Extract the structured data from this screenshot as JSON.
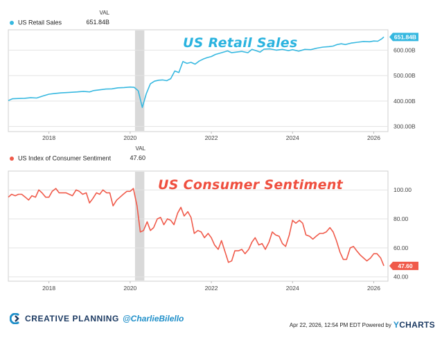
{
  "chart_data": [
    {
      "type": "line",
      "title": "US Retail Sales",
      "series": [
        {
          "name": "US Retail Sales",
          "color": "#36b8e0"
        }
      ],
      "legend": {
        "header": "VAL",
        "value": "651.84B"
      },
      "end_label": "651.84B",
      "yticks": [
        "300.00B",
        "400.00B",
        "500.00B",
        "600.00B"
      ],
      "ylim": [
        280,
        680
      ],
      "xticks": [
        "2018",
        "2020",
        "2022",
        "2024",
        "2026"
      ],
      "xlim": [
        2017.0,
        2026.35
      ],
      "recession": [
        2020.12,
        2020.35
      ],
      "points": [
        [
          2017.0,
          402
        ],
        [
          2017.1,
          409
        ],
        [
          2017.25,
          410
        ],
        [
          2017.4,
          411
        ],
        [
          2017.55,
          413
        ],
        [
          2017.7,
          412
        ],
        [
          2017.85,
          420
        ],
        [
          2018.0,
          427
        ],
        [
          2018.15,
          430
        ],
        [
          2018.3,
          432
        ],
        [
          2018.5,
          434
        ],
        [
          2018.7,
          436
        ],
        [
          2018.85,
          438
        ],
        [
          2019.0,
          436
        ],
        [
          2019.1,
          441
        ],
        [
          2019.25,
          444
        ],
        [
          2019.4,
          447
        ],
        [
          2019.55,
          448
        ],
        [
          2019.7,
          452
        ],
        [
          2019.85,
          453
        ],
        [
          2020.0,
          455
        ],
        [
          2020.1,
          454
        ],
        [
          2020.2,
          440
        ],
        [
          2020.3,
          375
        ],
        [
          2020.4,
          430
        ],
        [
          2020.5,
          468
        ],
        [
          2020.6,
          478
        ],
        [
          2020.7,
          482
        ],
        [
          2020.8,
          483
        ],
        [
          2020.9,
          480
        ],
        [
          2021.0,
          488
        ],
        [
          2021.1,
          518
        ],
        [
          2021.2,
          512
        ],
        [
          2021.3,
          555
        ],
        [
          2021.4,
          548
        ],
        [
          2021.5,
          552
        ],
        [
          2021.6,
          545
        ],
        [
          2021.7,
          557
        ],
        [
          2021.8,
          565
        ],
        [
          2021.9,
          571
        ],
        [
          2022.0,
          575
        ],
        [
          2022.1,
          583
        ],
        [
          2022.25,
          590
        ],
        [
          2022.4,
          597
        ],
        [
          2022.5,
          590
        ],
        [
          2022.6,
          592
        ],
        [
          2022.75,
          595
        ],
        [
          2022.9,
          590
        ],
        [
          2023.0,
          603
        ],
        [
          2023.1,
          598
        ],
        [
          2023.2,
          592
        ],
        [
          2023.3,
          604
        ],
        [
          2023.45,
          605
        ],
        [
          2023.6,
          600
        ],
        [
          2023.75,
          603
        ],
        [
          2023.9,
          598
        ],
        [
          2024.0,
          602
        ],
        [
          2024.15,
          596
        ],
        [
          2024.3,
          603
        ],
        [
          2024.45,
          602
        ],
        [
          2024.6,
          608
        ],
        [
          2024.75,
          612
        ],
        [
          2024.9,
          614
        ],
        [
          2025.0,
          616
        ],
        [
          2025.1,
          622
        ],
        [
          2025.2,
          625
        ],
        [
          2025.3,
          622
        ],
        [
          2025.45,
          628
        ],
        [
          2025.6,
          631
        ],
        [
          2025.75,
          634
        ],
        [
          2025.9,
          633
        ],
        [
          2026.0,
          636
        ],
        [
          2026.1,
          635
        ],
        [
          2026.2,
          645
        ],
        [
          2026.25,
          651.84
        ]
      ]
    },
    {
      "type": "line",
      "title": "US Consumer Sentiment",
      "series": [
        {
          "name": "US Index of Consumer Sentiment",
          "color": "#f05a4a"
        }
      ],
      "legend": {
        "header": "VAL",
        "value": "47.60"
      },
      "end_label": "47.60",
      "yticks": [
        "40.00",
        "60.00",
        "80.00",
        "100.00"
      ],
      "ylim": [
        37,
        113
      ],
      "xticks": [
        "2018",
        "2020",
        "2022",
        "2024",
        "2026"
      ],
      "xlim": [
        2017.0,
        2026.35
      ],
      "recession": [
        2020.12,
        2020.35
      ],
      "points": [
        [
          2017.0,
          95
        ],
        [
          2017.08,
          97
        ],
        [
          2017.17,
          96
        ],
        [
          2017.25,
          97
        ],
        [
          2017.33,
          97
        ],
        [
          2017.42,
          95
        ],
        [
          2017.5,
          93
        ],
        [
          2017.58,
          96
        ],
        [
          2017.67,
          95
        ],
        [
          2017.75,
          100
        ],
        [
          2017.83,
          98
        ],
        [
          2017.92,
          95
        ],
        [
          2018.0,
          95
        ],
        [
          2018.08,
          99
        ],
        [
          2018.17,
          101
        ],
        [
          2018.25,
          98
        ],
        [
          2018.33,
          98
        ],
        [
          2018.42,
          98
        ],
        [
          2018.5,
          97
        ],
        [
          2018.58,
          96
        ],
        [
          2018.67,
          100
        ],
        [
          2018.75,
          99
        ],
        [
          2018.83,
          97
        ],
        [
          2018.92,
          98
        ],
        [
          2019.0,
          91
        ],
        [
          2019.08,
          94
        ],
        [
          2019.17,
          98
        ],
        [
          2019.25,
          97
        ],
        [
          2019.33,
          100
        ],
        [
          2019.42,
          98
        ],
        [
          2019.5,
          98
        ],
        [
          2019.58,
          89
        ],
        [
          2019.67,
          93
        ],
        [
          2019.75,
          95
        ],
        [
          2019.83,
          97
        ],
        [
          2019.92,
          99
        ],
        [
          2020.0,
          99
        ],
        [
          2020.08,
          101
        ],
        [
          2020.17,
          89
        ],
        [
          2020.25,
          71
        ],
        [
          2020.33,
          72
        ],
        [
          2020.42,
          78
        ],
        [
          2020.5,
          72
        ],
        [
          2020.58,
          74
        ],
        [
          2020.67,
          80
        ],
        [
          2020.75,
          81
        ],
        [
          2020.83,
          76
        ],
        [
          2020.92,
          80
        ],
        [
          2021.0,
          79
        ],
        [
          2021.08,
          76
        ],
        [
          2021.17,
          84
        ],
        [
          2021.25,
          88
        ],
        [
          2021.33,
          82
        ],
        [
          2021.42,
          85
        ],
        [
          2021.5,
          81
        ],
        [
          2021.58,
          70
        ],
        [
          2021.67,
          72
        ],
        [
          2021.75,
          71
        ],
        [
          2021.83,
          67
        ],
        [
          2021.92,
          70
        ],
        [
          2022.0,
          67
        ],
        [
          2022.08,
          62
        ],
        [
          2022.17,
          59
        ],
        [
          2022.25,
          65
        ],
        [
          2022.33,
          58
        ],
        [
          2022.42,
          50
        ],
        [
          2022.5,
          51
        ],
        [
          2022.58,
          58
        ],
        [
          2022.67,
          58
        ],
        [
          2022.75,
          59
        ],
        [
          2022.83,
          56
        ],
        [
          2022.92,
          59
        ],
        [
          2023.0,
          64
        ],
        [
          2023.08,
          67
        ],
        [
          2023.17,
          62
        ],
        [
          2023.25,
          63
        ],
        [
          2023.33,
          59
        ],
        [
          2023.42,
          64
        ],
        [
          2023.5,
          71
        ],
        [
          2023.58,
          69
        ],
        [
          2023.67,
          68
        ],
        [
          2023.75,
          63
        ],
        [
          2023.83,
          61
        ],
        [
          2023.92,
          69
        ],
        [
          2024.0,
          79
        ],
        [
          2024.08,
          77
        ],
        [
          2024.17,
          79
        ],
        [
          2024.25,
          77
        ],
        [
          2024.33,
          69
        ],
        [
          2024.42,
          68
        ],
        [
          2024.5,
          66
        ],
        [
          2024.58,
          68
        ],
        [
          2024.67,
          70
        ],
        [
          2024.75,
          70
        ],
        [
          2024.83,
          71
        ],
        [
          2024.92,
          74
        ],
        [
          2025.0,
          71
        ],
        [
          2025.08,
          65
        ],
        [
          2025.17,
          57
        ],
        [
          2025.25,
          52
        ],
        [
          2025.33,
          52
        ],
        [
          2025.42,
          60
        ],
        [
          2025.5,
          61
        ],
        [
          2025.58,
          58
        ],
        [
          2025.67,
          55
        ],
        [
          2025.75,
          53
        ],
        [
          2025.83,
          51
        ],
        [
          2025.92,
          53
        ],
        [
          2026.0,
          56
        ],
        [
          2026.08,
          56
        ],
        [
          2026.17,
          53
        ],
        [
          2026.25,
          47.6
        ]
      ]
    }
  ],
  "footer": {
    "brand": "CREATIVE PLANNING",
    "handle": "@CharlieBilello",
    "date": "Apr 22, 2026, 12:54 PM EDT Powered by",
    "ycharts_y": "Y",
    "ycharts_rest": "CHARTS"
  },
  "colors": {
    "retail": "#36b8e0",
    "sentiment": "#f05a4a",
    "recession": "#d9d9d9",
    "grid": "#e3e3e3"
  }
}
